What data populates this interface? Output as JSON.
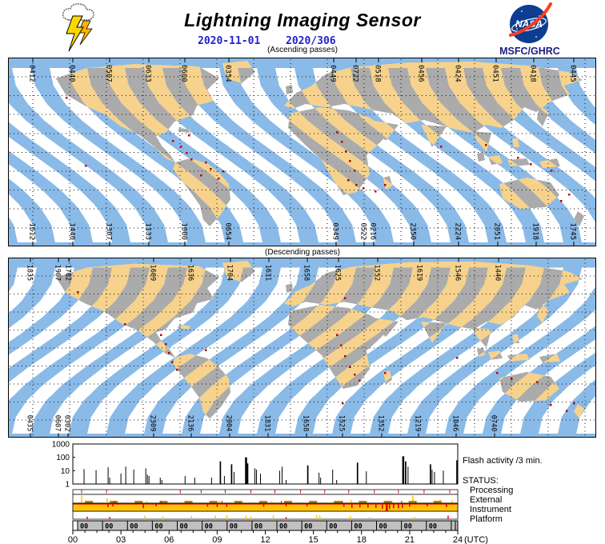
{
  "header": {
    "title": "Lightning Imaging Sensor",
    "date_iso": "2020-11-01",
    "date_doy": "2020/306",
    "nasa_text": "NASA",
    "org": "MSFC/GHRC"
  },
  "colors": {
    "ocean": "#8ABAE8",
    "gap": "#FFFFFF",
    "land_in_swath": "#F6D28C",
    "land_in_gap": "#ABABAB",
    "flash": "#BE0000",
    "date_blue": "#2222CC",
    "org_navy": "#1A1A80",
    "nasa_blue": "#0B3D91",
    "nasa_red": "#FC3D21",
    "instrument_gold": "#FFC408",
    "dash_gold": "#B8860B",
    "status_red": "#E60000",
    "gray_band": "#C0C0C0",
    "spike_black": "#000000"
  },
  "maps": [
    {
      "id": "ascending",
      "caption": "(Ascending passes)",
      "top_labels": [
        [
          31,
          "0412"
        ],
        [
          81,
          "0440"
        ],
        [
          127,
          "0507"
        ],
        [
          176,
          "0633"
        ],
        [
          221,
          "0600"
        ],
        [
          276,
          "0354"
        ],
        [
          407,
          "0449"
        ],
        [
          435,
          "0722"
        ],
        [
          463,
          "0518"
        ],
        [
          517,
          "0456"
        ],
        [
          563,
          "0424"
        ],
        [
          610,
          "0451"
        ],
        [
          657,
          "0418"
        ],
        [
          707,
          "0445"
        ]
      ],
      "bottom_labels": [
        [
          31,
          "1612"
        ],
        [
          81,
          "1440"
        ],
        [
          127,
          "1307"
        ],
        [
          176,
          "1133"
        ],
        [
          221,
          "1000"
        ],
        [
          276,
          "0654"
        ],
        [
          410,
          "0349"
        ],
        [
          445,
          "0522"
        ],
        [
          457,
          "0216"
        ],
        [
          507,
          "2350"
        ],
        [
          563,
          "2224"
        ],
        [
          612,
          "2051"
        ],
        [
          660,
          "1918"
        ],
        [
          707,
          "1745"
        ]
      ],
      "flashes": [
        [
          72,
          49
        ],
        [
          205,
          103
        ],
        [
          215,
          110
        ],
        [
          222,
          118
        ],
        [
          228,
          126
        ],
        [
          246,
          130
        ],
        [
          252,
          138
        ],
        [
          240,
          146
        ],
        [
          262,
          150
        ],
        [
          268,
          141
        ],
        [
          410,
          92
        ],
        [
          416,
          104
        ],
        [
          421,
          116
        ],
        [
          426,
          128
        ],
        [
          432,
          140
        ],
        [
          424,
          152
        ],
        [
          434,
          158
        ],
        [
          443,
          162
        ],
        [
          458,
          166
        ],
        [
          470,
          158
        ],
        [
          540,
          110
        ],
        [
          596,
          108
        ],
        [
          636,
          124
        ],
        [
          652,
          132
        ],
        [
          678,
          140
        ],
        [
          690,
          178
        ],
        [
          700,
          170
        ],
        [
          96,
          134
        ],
        [
          225,
          96
        ]
      ]
    },
    {
      "id": "descending",
      "caption": "(Descending passes)",
      "top_labels": [
        [
          28,
          "1835"
        ],
        [
          63,
          "1907"
        ],
        [
          76,
          "1702"
        ],
        [
          182,
          "1609"
        ],
        [
          229,
          "1636"
        ],
        [
          278,
          "1704"
        ],
        [
          326,
          "1631"
        ],
        [
          374,
          "1658"
        ],
        [
          413,
          "1625"
        ],
        [
          462,
          "1552"
        ],
        [
          515,
          "1619"
        ],
        [
          563,
          "1546"
        ],
        [
          613,
          "1440"
        ]
      ],
      "bottom_labels": [
        [
          28,
          "0435"
        ],
        [
          63,
          "0607"
        ],
        [
          75,
          "0302"
        ],
        [
          182,
          "2309"
        ],
        [
          229,
          "2136"
        ],
        [
          277,
          "2004"
        ],
        [
          325,
          "1831"
        ],
        [
          373,
          "1658"
        ],
        [
          418,
          "1525"
        ],
        [
          467,
          "1352"
        ],
        [
          513,
          "1219"
        ],
        [
          560,
          "1046"
        ],
        [
          608,
          "0740"
        ]
      ],
      "flashes": [
        [
          86,
          44
        ],
        [
          190,
          100
        ],
        [
          196,
          112
        ],
        [
          200,
          124
        ],
        [
          204,
          136
        ],
        [
          210,
          146
        ],
        [
          145,
          86
        ],
        [
          246,
          120
        ],
        [
          410,
          100
        ],
        [
          415,
          114
        ],
        [
          420,
          128
        ],
        [
          426,
          142
        ],
        [
          432,
          152
        ],
        [
          438,
          160
        ],
        [
          417,
          190
        ],
        [
          560,
          130
        ],
        [
          610,
          150
        ],
        [
          628,
          158
        ],
        [
          660,
          162
        ],
        [
          677,
          192
        ],
        [
          697,
          200
        ],
        [
          706,
          190
        ],
        [
          470,
          150
        ],
        [
          420,
          52
        ]
      ]
    }
  ],
  "activity": {
    "label": "Flash activity /3 min.",
    "status_title": "STATUS:",
    "status_rows": [
      "Processing",
      "External",
      "Instrument",
      "Platform"
    ],
    "y_ticks": [
      "1000",
      "100",
      "10",
      "1"
    ],
    "x_tick_labels": [
      "00",
      "03",
      "06",
      "09",
      "12",
      "15",
      "18",
      "21",
      "24"
    ],
    "x_axis_unit": "(UTC)",
    "orbit_band": {
      "label": "00",
      "start_h": 0.3,
      "period_h": 1.553,
      "count": 15
    }
  },
  "chart_data": {
    "type": "bar",
    "title": "Flash activity /3 min.",
    "xlabel": "(UTC)",
    "xlim": [
      0,
      24
    ],
    "ylog_ticks": [
      1000,
      100,
      10,
      1
    ],
    "ylim": [
      1,
      1000
    ],
    "x": [
      0.7,
      1.45,
      2.2,
      2.3,
      3.0,
      3.3,
      3.8,
      4.55,
      4.65,
      4.75,
      5.45,
      5.55,
      7.0,
      7.6,
      8.65,
      9.2,
      9.45,
      9.9,
      10.05,
      10.8,
      10.9,
      11.35,
      11.45,
      11.7,
      12.9,
      13.05,
      13.3,
      14.65,
      15.35,
      15.45,
      16.2,
      16.45,
      17.75,
      18.3,
      20.6,
      20.75,
      20.9,
      22.3,
      22.4,
      22.55,
      23.1,
      23.95
    ],
    "values": [
      13,
      11,
      18,
      3,
      6,
      20,
      12,
      15,
      5,
      4,
      3,
      2,
      4,
      3,
      3,
      50,
      4,
      30,
      8,
      100,
      35,
      15,
      12,
      6,
      10,
      20,
      2,
      25,
      7,
      3,
      12,
      2,
      40,
      9,
      120,
      50,
      20,
      30,
      12,
      8,
      10,
      60
    ],
    "status": {
      "processing_ticks_h": [
        0.55,
        2.1,
        6.7,
        8.0,
        9.5,
        11.1,
        12.6,
        14.2,
        15.7,
        17.2,
        18.8,
        20.3,
        21.9,
        23.5
      ],
      "external_spikes": [
        [
          0.55,
          0.95
        ],
        [
          2.15,
          0.6
        ],
        [
          4.6,
          0.25
        ],
        [
          9.15,
          0.3
        ],
        [
          12.4,
          0.25
        ],
        [
          14.9,
          0.2
        ],
        [
          17.35,
          0.4
        ],
        [
          19.9,
          0.25
        ],
        [
          21.2,
          0.95
        ],
        [
          22.9,
          0.45
        ],
        [
          23.65,
          0.35
        ]
      ],
      "external_dashes": {
        "start_h": 0.75,
        "period_h": 1.553,
        "len_h": 0.5
      },
      "external_red_ticks_h": [
        2.6,
        5.5,
        9.3,
        13.0,
        16.8,
        20.5
      ],
      "instrument_dips": [
        [
          2.2,
          0.4
        ],
        [
          2.5,
          0.3
        ],
        [
          4.4,
          0.55
        ],
        [
          5.2,
          0.3
        ],
        [
          8.4,
          0.35
        ],
        [
          9.0,
          0.4
        ],
        [
          9.6,
          0.35
        ],
        [
          11.9,
          0.35
        ],
        [
          13.3,
          0.3
        ],
        [
          14.6,
          0.3
        ],
        [
          16.9,
          0.35
        ],
        [
          17.4,
          0.55
        ],
        [
          17.9,
          0.45
        ],
        [
          18.4,
          0.5
        ],
        [
          18.9,
          0.55
        ],
        [
          19.3,
          0.65
        ],
        [
          19.55,
          1.0
        ],
        [
          19.75,
          0.7
        ],
        [
          20.0,
          0.55
        ],
        [
          20.3,
          0.6
        ],
        [
          20.55,
          0.5
        ],
        [
          21.0,
          0.35
        ],
        [
          22.1,
          0.3
        ],
        [
          23.3,
          0.4
        ]
      ],
      "platform_spikes": [
        [
          0.9,
          0.4,
          "r"
        ],
        [
          2.3,
          0.35,
          "r"
        ],
        [
          4.5,
          0.55,
          "y"
        ],
        [
          5.6,
          0.4,
          "y"
        ],
        [
          7.4,
          0.5,
          "y"
        ],
        [
          8.9,
          0.55,
          "y"
        ],
        [
          9.6,
          0.65,
          "y"
        ],
        [
          10.8,
          0.55,
          "y"
        ],
        [
          11.1,
          0.45,
          "y"
        ],
        [
          12.5,
          0.6,
          "y"
        ],
        [
          13.3,
          0.35,
          "r"
        ],
        [
          15.2,
          0.65,
          "y"
        ],
        [
          15.4,
          0.55,
          "y"
        ],
        [
          17.3,
          0.5,
          "y"
        ],
        [
          18.5,
          0.35,
          "y"
        ],
        [
          21.3,
          0.4,
          "y"
        ],
        [
          23.4,
          0.55,
          "r"
        ]
      ]
    }
  }
}
